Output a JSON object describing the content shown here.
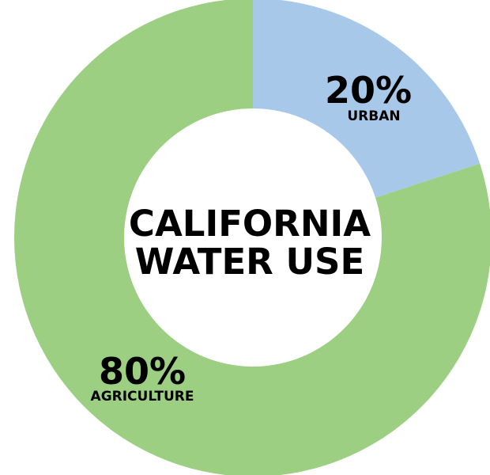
{
  "chart_data": {
    "type": "pie",
    "title_lines": [
      "CALIFORNIA",
      "WATER USE"
    ],
    "slices": [
      {
        "label": "URBAN",
        "value": 20,
        "display": "20%",
        "color": "#a8c8ea"
      },
      {
        "label": "AGRICULTURE",
        "value": 80,
        "display": "80%",
        "color": "#9ccf82"
      }
    ]
  }
}
